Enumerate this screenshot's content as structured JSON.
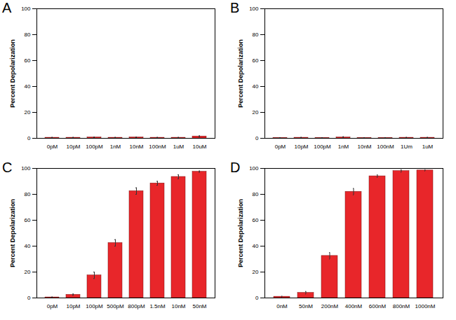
{
  "chart_data": [
    {
      "type": "bar",
      "title": "A",
      "y_label": "Percent Depolarization",
      "categories": [
        "0pM",
        "10pM",
        "100pM",
        "1nM",
        "10nM",
        "100nM",
        "1uM",
        "10uM"
      ],
      "values": [
        0.5,
        0.5,
        0.7,
        0.5,
        0.7,
        0.5,
        0.5,
        1.5
      ],
      "errors": [
        0.2,
        0.2,
        0.2,
        0.2,
        0.2,
        0.2,
        0.2,
        0.4
      ],
      "color": "#e8262a",
      "ylim": [
        0,
        100
      ],
      "yticks": [
        0,
        20,
        40,
        60,
        80,
        100
      ],
      "grid": false
    },
    {
      "type": "bar",
      "title": "B",
      "y_label": "Percent Depolarization",
      "categories": [
        "0pM",
        "10pM",
        "100pM",
        "1nM",
        "10nM",
        "100nM",
        "1Um",
        "1uM"
      ],
      "values": [
        0.3,
        0.5,
        0.3,
        0.7,
        0.3,
        0.3,
        0.5,
        0.5
      ],
      "errors": [
        0.2,
        0.2,
        0.2,
        0.5,
        0.2,
        0.2,
        0.2,
        0.2
      ],
      "color": "#e8262a",
      "ylim": [
        0,
        100
      ],
      "yticks": [
        0,
        20,
        40,
        60,
        80,
        100
      ],
      "grid": false
    },
    {
      "type": "bar",
      "title": "C",
      "y_label": "Percent Depolarization",
      "categories": [
        "0pM",
        "10pM",
        "100pM",
        "500pM",
        "800pM",
        "1.5nM",
        "10nM",
        "50nM"
      ],
      "values": [
        0.5,
        2.5,
        17.5,
        42.5,
        82.5,
        88.5,
        93.5,
        97.5
      ],
      "errors": [
        0.2,
        0.5,
        2.5,
        2.5,
        2.5,
        1.5,
        1.5,
        0.5
      ],
      "color": "#e8262a",
      "ylim": [
        0,
        100
      ],
      "yticks": [
        0,
        20,
        40,
        60,
        80,
        100
      ],
      "grid": false
    },
    {
      "type": "bar",
      "title": "D",
      "y_label": "Percent Depolarization",
      "categories": [
        "0nM",
        "50nM",
        "200nM",
        "400nM",
        "600nM",
        "800nM",
        "1000nM"
      ],
      "values": [
        1,
        4,
        32.5,
        82,
        94,
        98,
        98.5
      ],
      "errors": [
        0.3,
        1,
        2.5,
        2.5,
        1,
        1,
        0.5
      ],
      "color": "#e8262a",
      "ylim": [
        0,
        100
      ],
      "yticks": [
        0,
        20,
        40,
        60,
        80,
        100
      ],
      "grid": false
    }
  ]
}
